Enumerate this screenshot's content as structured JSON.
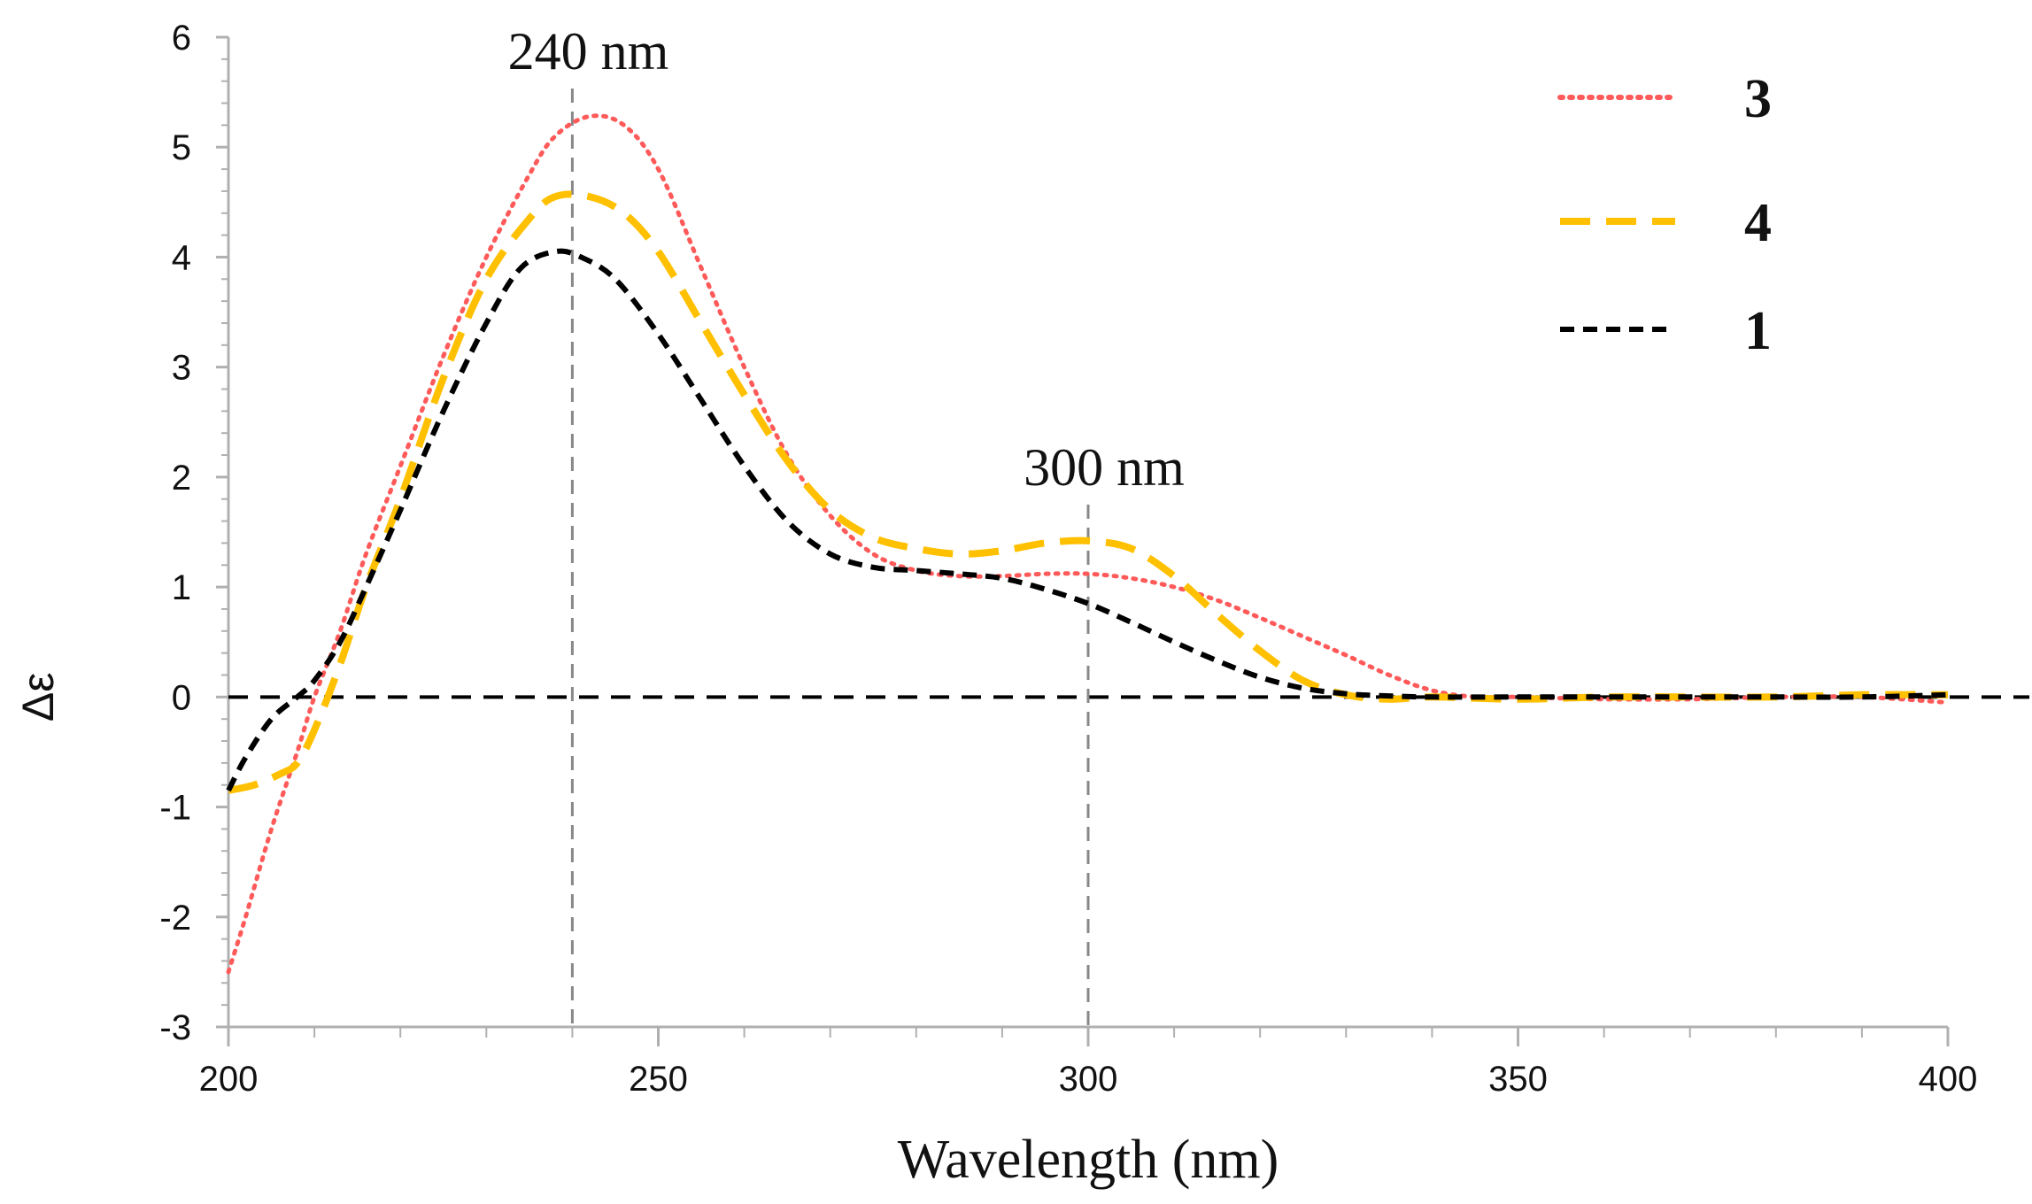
{
  "chart_data": {
    "type": "line",
    "title": "",
    "xlabel": "Wavelength (nm)",
    "ylabel": "Δε",
    "xlim": [
      200,
      400
    ],
    "ylim": [
      -3,
      6
    ],
    "x_ticks": [
      "200",
      "250",
      "300",
      "350",
      "400"
    ],
    "y_ticks": [
      "6",
      "5",
      "4",
      "3",
      "2",
      "1",
      "0",
      "-1",
      "-2",
      "-3"
    ],
    "grid": false,
    "legend_position": "top-right",
    "annotations": [
      {
        "text": "240 nm",
        "x": 240
      },
      {
        "text": "300 nm",
        "x": 300
      }
    ],
    "series": [
      {
        "name": "3",
        "color": "#ff5a5a",
        "style": "dotted",
        "points": [
          [
            200,
            -2.5
          ],
          [
            202,
            -2.0
          ],
          [
            205,
            -1.2
          ],
          [
            208,
            -0.5
          ],
          [
            210,
            0.0
          ],
          [
            213,
            0.6
          ],
          [
            216,
            1.3
          ],
          [
            220,
            2.1
          ],
          [
            225,
            3.1
          ],
          [
            230,
            4.0
          ],
          [
            235,
            4.75
          ],
          [
            238,
            5.1
          ],
          [
            242,
            5.28
          ],
          [
            246,
            5.2
          ],
          [
            250,
            4.8
          ],
          [
            255,
            3.9
          ],
          [
            260,
            3.0
          ],
          [
            265,
            2.2
          ],
          [
            270,
            1.65
          ],
          [
            275,
            1.3
          ],
          [
            280,
            1.15
          ],
          [
            285,
            1.1
          ],
          [
            290,
            1.1
          ],
          [
            295,
            1.12
          ],
          [
            300,
            1.12
          ],
          [
            305,
            1.08
          ],
          [
            310,
            1.0
          ],
          [
            315,
            0.88
          ],
          [
            320,
            0.72
          ],
          [
            325,
            0.55
          ],
          [
            330,
            0.38
          ],
          [
            335,
            0.2
          ],
          [
            340,
            0.06
          ],
          [
            345,
            0.0
          ],
          [
            350,
            0.0
          ],
          [
            360,
            -0.02
          ],
          [
            370,
            -0.02
          ],
          [
            380,
            0.0
          ],
          [
            390,
            0.0
          ],
          [
            400,
            -0.05
          ]
        ]
      },
      {
        "name": "4",
        "color": "#ffc000",
        "style": "dashed",
        "points": [
          [
            200,
            -0.85
          ],
          [
            203,
            -0.8
          ],
          [
            206,
            -0.7
          ],
          [
            208,
            -0.6
          ],
          [
            210,
            -0.3
          ],
          [
            213,
            0.3
          ],
          [
            216,
            1.0
          ],
          [
            220,
            1.8
          ],
          [
            225,
            2.9
          ],
          [
            230,
            3.8
          ],
          [
            235,
            4.35
          ],
          [
            238,
            4.55
          ],
          [
            242,
            4.55
          ],
          [
            246,
            4.4
          ],
          [
            250,
            4.05
          ],
          [
            255,
            3.4
          ],
          [
            260,
            2.75
          ],
          [
            265,
            2.15
          ],
          [
            270,
            1.7
          ],
          [
            275,
            1.45
          ],
          [
            280,
            1.35
          ],
          [
            285,
            1.3
          ],
          [
            290,
            1.33
          ],
          [
            295,
            1.4
          ],
          [
            300,
            1.42
          ],
          [
            305,
            1.35
          ],
          [
            310,
            1.1
          ],
          [
            315,
            0.75
          ],
          [
            320,
            0.42
          ],
          [
            325,
            0.15
          ],
          [
            330,
            0.02
          ],
          [
            335,
            -0.02
          ],
          [
            340,
            0.0
          ],
          [
            350,
            -0.02
          ],
          [
            360,
            0.0
          ],
          [
            370,
            0.0
          ],
          [
            380,
            0.0
          ],
          [
            390,
            0.02
          ],
          [
            400,
            0.02
          ]
        ]
      },
      {
        "name": "1",
        "color": "#000000",
        "style": "dashed",
        "points": [
          [
            200,
            -0.85
          ],
          [
            202,
            -0.55
          ],
          [
            205,
            -0.2
          ],
          [
            208,
            0.0
          ],
          [
            210,
            0.15
          ],
          [
            213,
            0.5
          ],
          [
            216,
            1.0
          ],
          [
            220,
            1.7
          ],
          [
            225,
            2.6
          ],
          [
            230,
            3.4
          ],
          [
            234,
            3.9
          ],
          [
            238,
            4.05
          ],
          [
            241,
            4.0
          ],
          [
            245,
            3.8
          ],
          [
            250,
            3.3
          ],
          [
            255,
            2.7
          ],
          [
            260,
            2.1
          ],
          [
            265,
            1.6
          ],
          [
            270,
            1.3
          ],
          [
            275,
            1.18
          ],
          [
            280,
            1.15
          ],
          [
            285,
            1.12
          ],
          [
            290,
            1.08
          ],
          [
            295,
            0.98
          ],
          [
            300,
            0.85
          ],
          [
            305,
            0.68
          ],
          [
            310,
            0.5
          ],
          [
            315,
            0.33
          ],
          [
            320,
            0.18
          ],
          [
            325,
            0.08
          ],
          [
            330,
            0.03
          ],
          [
            335,
            0.01
          ],
          [
            340,
            0.0
          ],
          [
            350,
            0.0
          ],
          [
            360,
            0.0
          ],
          [
            370,
            0.0
          ],
          [
            380,
            0.0
          ],
          [
            390,
            0.0
          ],
          [
            400,
            0.02
          ]
        ]
      }
    ]
  }
}
